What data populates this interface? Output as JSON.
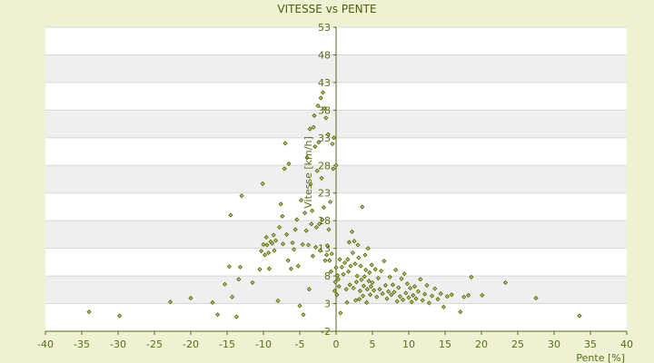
{
  "chart_data": {
    "type": "scatter",
    "title": "VITESSE vs PENTE",
    "xlabel": "Pente [%]",
    "ylabel": "Vitesse [km/h]",
    "xlim": [
      -40,
      40
    ],
    "ylim": [
      -2,
      53
    ],
    "xticks": [
      -40,
      -35,
      -30,
      -25,
      -20,
      -15,
      -10,
      -5,
      0,
      5,
      10,
      15,
      20,
      25,
      30,
      35,
      40
    ],
    "yticks": [
      -2,
      3,
      8,
      13,
      18,
      23,
      28,
      33,
      38,
      43,
      48,
      53
    ],
    "grid": true,
    "legend": "none",
    "colors": {
      "background": "#eef2d2",
      "plot_band_light": "#ffffff",
      "plot_band_dark": "#efefef",
      "grid": "#d8d8d8",
      "axis": "#5a6414",
      "marker_fill": "#c8d25a",
      "marker_stroke": "#4e5a0a",
      "text": "#5e6a14"
    },
    "points": [
      [
        -34,
        1.5
      ],
      [
        -29.8,
        0.8
      ],
      [
        -22.8,
        3.3
      ],
      [
        -20,
        4
      ],
      [
        -17,
        3.2
      ],
      [
        -16.3,
        1
      ],
      [
        -15.3,
        6.5
      ],
      [
        -14.7,
        9.7
      ],
      [
        -14.5,
        19
      ],
      [
        -14.3,
        4.2
      ],
      [
        -13.7,
        0.6
      ],
      [
        -13.4,
        7.4
      ],
      [
        -13.2,
        9.6
      ],
      [
        -13,
        22.5
      ],
      [
        -11.5,
        6.8
      ],
      [
        -10.5,
        9.2
      ],
      [
        -10.3,
        12.5
      ],
      [
        -10.1,
        24.7
      ],
      [
        -10,
        13.7
      ],
      [
        -9.8,
        11.8
      ],
      [
        -9.6,
        15
      ],
      [
        -9.5,
        13.6
      ],
      [
        -9.3,
        12.2
      ],
      [
        -9.2,
        9.3
      ],
      [
        -9,
        14.2
      ],
      [
        -8.8,
        13.9
      ],
      [
        -8.6,
        15.4
      ],
      [
        -8.5,
        12.6
      ],
      [
        -8.3,
        14.4
      ],
      [
        -8,
        3.5
      ],
      [
        -7.8,
        16.8
      ],
      [
        -7.6,
        21
      ],
      [
        -7.4,
        18.8
      ],
      [
        -7.3,
        13.8
      ],
      [
        -7.1,
        27.4
      ],
      [
        -7,
        32
      ],
      [
        -6.8,
        15.5
      ],
      [
        -6.6,
        10.8
      ],
      [
        -6.5,
        28.3
      ],
      [
        -6.2,
        9.3
      ],
      [
        -6,
        14
      ],
      [
        -5.8,
        12.8
      ],
      [
        -5.6,
        16.4
      ],
      [
        -5.4,
        18.2
      ],
      [
        -5.2,
        9.8
      ],
      [
        -5,
        2.6
      ],
      [
        -4.8,
        21.7
      ],
      [
        -4.6,
        13.7
      ],
      [
        -4.5,
        1
      ],
      [
        -4.3,
        19.4
      ],
      [
        -4.1,
        16.2
      ],
      [
        -4,
        29.4
      ],
      [
        -3.8,
        13.6
      ],
      [
        -3.7,
        5.6
      ],
      [
        -3.6,
        34.6
      ],
      [
        -3.5,
        24.6
      ],
      [
        -3.4,
        17.4
      ],
      [
        -3.3,
        19.8
      ],
      [
        -3.2,
        11.6
      ],
      [
        -3.1,
        34.9
      ],
      [
        -3,
        37
      ],
      [
        -2.9,
        31.4
      ],
      [
        -2.8,
        13.2
      ],
      [
        -2.7,
        16.8
      ],
      [
        -2.6,
        27
      ],
      [
        -2.5,
        38.8
      ],
      [
        -2.4,
        32.2
      ],
      [
        -2.3,
        17.4
      ],
      [
        -2.2,
        12.6
      ],
      [
        -2.1,
        40.2
      ],
      [
        -2,
        25.7
      ],
      [
        -1.9,
        18.2
      ],
      [
        -1.8,
        41.2
      ],
      [
        -1.7,
        20.4
      ],
      [
        -1.6,
        38.3
      ],
      [
        -1.5,
        10.8
      ],
      [
        -1.4,
        36.6
      ],
      [
        -1.3,
        11.8
      ],
      [
        -1.2,
        13.5
      ],
      [
        -1.1,
        33.6
      ],
      [
        -1,
        16.4
      ],
      [
        -0.9,
        10.8
      ],
      [
        -0.8,
        21.4
      ],
      [
        -0.7,
        8.8
      ],
      [
        -0.6,
        12
      ],
      [
        -0.5,
        31.9
      ],
      [
        -0.4,
        27.4
      ],
      [
        -0.3,
        33
      ],
      [
        -0.2,
        5.3
      ],
      [
        -0.1,
        6.9
      ],
      [
        0,
        28
      ],
      [
        0,
        9.5
      ],
      [
        0.1,
        4.6
      ],
      [
        0.2,
        8.1
      ],
      [
        0.3,
        7.4
      ],
      [
        0.4,
        6.1
      ],
      [
        0.5,
        11
      ],
      [
        0.6,
        1.3
      ],
      [
        0.8,
        9.6
      ],
      [
        1,
        8.3
      ],
      [
        1.2,
        10.4
      ],
      [
        1.4,
        5.6
      ],
      [
        1.5,
        3.2
      ],
      [
        1.6,
        11
      ],
      [
        1.7,
        8.8
      ],
      [
        1.8,
        14.1
      ],
      [
        1.9,
        6.4
      ],
      [
        2,
        9.8
      ],
      [
        2.2,
        16
      ],
      [
        2.3,
        12.2
      ],
      [
        2.4,
        5.8
      ],
      [
        2.5,
        14.3
      ],
      [
        2.6,
        10.2
      ],
      [
        2.7,
        3.6
      ],
      [
        2.8,
        6.9
      ],
      [
        2.9,
        8
      ],
      [
        3,
        13.6
      ],
      [
        3.1,
        11.3
      ],
      [
        3.2,
        3.8
      ],
      [
        3.3,
        5.3
      ],
      [
        3.4,
        9.8
      ],
      [
        3.5,
        7.3
      ],
      [
        3.6,
        20.5
      ],
      [
        3.7,
        4.4
      ],
      [
        3.8,
        6.2
      ],
      [
        3.9,
        7.9
      ],
      [
        4,
        11.8
      ],
      [
        4.1,
        9.1
      ],
      [
        4.2,
        3.2
      ],
      [
        4.3,
        5.6
      ],
      [
        4.4,
        13
      ],
      [
        4.5,
        7.1
      ],
      [
        4.6,
        8.6
      ],
      [
        4.7,
        4.6
      ],
      [
        4.8,
        6.1
      ],
      [
        4.9,
        10
      ],
      [
        5,
        6.8
      ],
      [
        5.2,
        5.4
      ],
      [
        5.4,
        9.2
      ],
      [
        5.6,
        4.2
      ],
      [
        5.8,
        7.6
      ],
      [
        6,
        5.6
      ],
      [
        6.2,
        8.9
      ],
      [
        6.4,
        4.8
      ],
      [
        6.6,
        10.7
      ],
      [
        6.8,
        6.3
      ],
      [
        7,
        3.9
      ],
      [
        7.2,
        5.2
      ],
      [
        7.4,
        7.8
      ],
      [
        7.6,
        4.6
      ],
      [
        7.8,
        6.4
      ],
      [
        8,
        5.1
      ],
      [
        8.2,
        9.1
      ],
      [
        8.4,
        3.4
      ],
      [
        8.6,
        5.9
      ],
      [
        8.8,
        4.3
      ],
      [
        9,
        7.5
      ],
      [
        9.2,
        3.7
      ],
      [
        9.4,
        8.4
      ],
      [
        9.6,
        4.9
      ],
      [
        9.8,
        6.6
      ],
      [
        10,
        4.1
      ],
      [
        10.2,
        5.8
      ],
      [
        10.4,
        3.3
      ],
      [
        10.6,
        4.5
      ],
      [
        10.8,
        6.1
      ],
      [
        11,
        3.9
      ],
      [
        11.3,
        5.2
      ],
      [
        11.6,
        7.4
      ],
      [
        11.9,
        3.6
      ],
      [
        12.2,
        4.7
      ],
      [
        12.5,
        6.3
      ],
      [
        12.8,
        3.1
      ],
      [
        13.2,
        4.4
      ],
      [
        13.6,
        5.7
      ],
      [
        14,
        3.8
      ],
      [
        14.4,
        4.8
      ],
      [
        14.8,
        2.4
      ],
      [
        15.3,
        4.3
      ],
      [
        15.9,
        4.6
      ],
      [
        17.1,
        1.5
      ],
      [
        17.6,
        4.2
      ],
      [
        18.2,
        4.5
      ],
      [
        18.6,
        7.8
      ],
      [
        20.1,
        4.5
      ],
      [
        23.3,
        6.8
      ],
      [
        27.5,
        4
      ],
      [
        33.5,
        0.8
      ]
    ]
  }
}
